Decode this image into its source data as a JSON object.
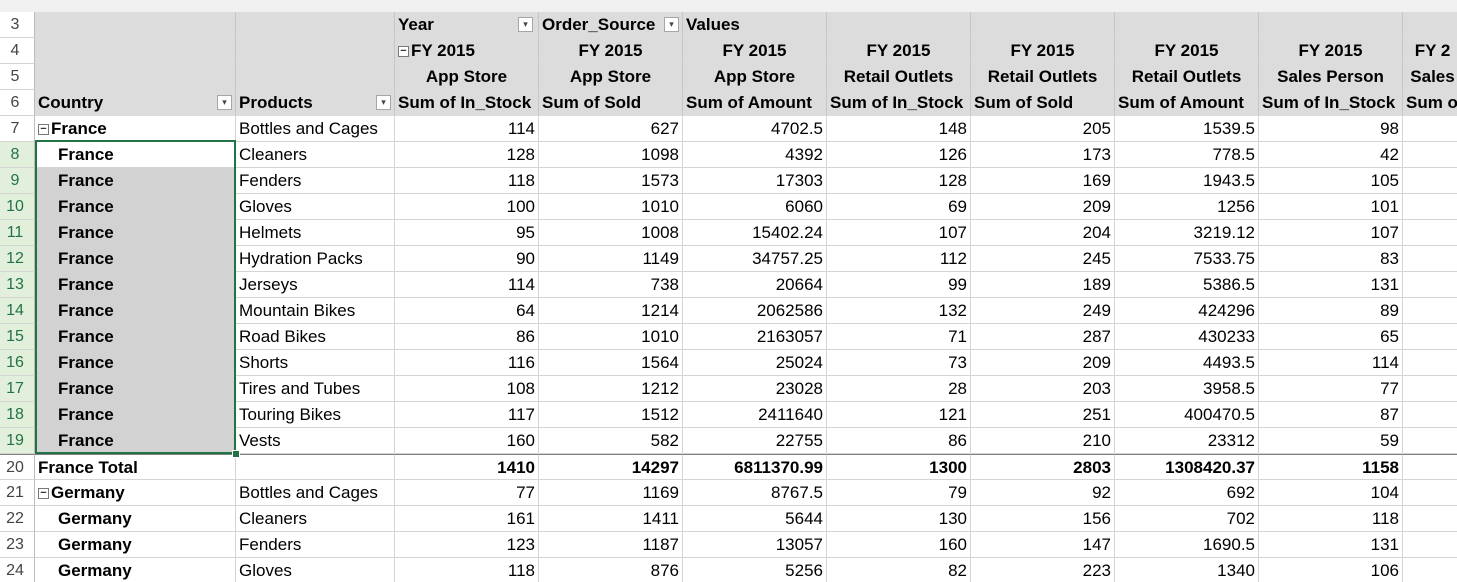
{
  "sheet": {
    "top_row_number": "2",
    "columns": [
      "Country",
      "Products",
      "c1",
      "c2",
      "c3",
      "c4",
      "c5",
      "c6",
      "c7",
      "c8"
    ],
    "header": {
      "r3": {
        "num": "3",
        "c1": "Year",
        "c2": "Order_Source",
        "c3": "Values"
      },
      "r4": {
        "num": "4",
        "c1": "FY 2015",
        "c2": "FY 2015",
        "c3": "FY 2015",
        "c4": "FY 2015",
        "c5": "FY 2015",
        "c6": "FY 2015",
        "c7": "FY 2015",
        "c8": "FY 2"
      },
      "r5": {
        "num": "5",
        "c1": "App Store",
        "c2": "App Store",
        "c3": "App Store",
        "c4": "Retail Outlets",
        "c5": "Retail Outlets",
        "c6": "Retail Outlets",
        "c7": "Sales Person",
        "c8": "Sales "
      },
      "r6": {
        "num": "6",
        "country": "Country",
        "products": "Products",
        "c1": "Sum of In_Stock",
        "c2": "Sum of Sold",
        "c3": "Sum of Amount",
        "c4": "Sum of In_Stock",
        "c5": "Sum of Sold",
        "c6": "Sum of Amount",
        "c7": "Sum of In_Stock",
        "c8": "Sum o"
      }
    },
    "rows": [
      {
        "num": "7",
        "country": "France",
        "product": "Bottles and Cages",
        "v": [
          "114",
          "627",
          "4702.5",
          "148",
          "205",
          "1539.5",
          "98"
        ]
      },
      {
        "num": "8",
        "country": "France",
        "product": "Cleaners",
        "v": [
          "128",
          "1098",
          "4392",
          "126",
          "173",
          "778.5",
          "42"
        ]
      },
      {
        "num": "9",
        "country": "France",
        "product": "Fenders",
        "v": [
          "118",
          "1573",
          "17303",
          "128",
          "169",
          "1943.5",
          "105"
        ]
      },
      {
        "num": "10",
        "country": "France",
        "product": "Gloves",
        "v": [
          "100",
          "1010",
          "6060",
          "69",
          "209",
          "1256",
          "101"
        ]
      },
      {
        "num": "11",
        "country": "France",
        "product": "Helmets",
        "v": [
          "95",
          "1008",
          "15402.24",
          "107",
          "204",
          "3219.12",
          "107"
        ]
      },
      {
        "num": "12",
        "country": "France",
        "product": "Hydration Packs",
        "v": [
          "90",
          "1149",
          "34757.25",
          "112",
          "245",
          "7533.75",
          "83"
        ]
      },
      {
        "num": "13",
        "country": "France",
        "product": "Jerseys",
        "v": [
          "114",
          "738",
          "20664",
          "99",
          "189",
          "5386.5",
          "131"
        ]
      },
      {
        "num": "14",
        "country": "France",
        "product": "Mountain Bikes",
        "v": [
          "64",
          "1214",
          "2062586",
          "132",
          "249",
          "424296",
          "89"
        ]
      },
      {
        "num": "15",
        "country": "France",
        "product": "Road Bikes",
        "v": [
          "86",
          "1010",
          "2163057",
          "71",
          "287",
          "430233",
          "65"
        ]
      },
      {
        "num": "16",
        "country": "France",
        "product": "Shorts",
        "v": [
          "116",
          "1564",
          "25024",
          "73",
          "209",
          "4493.5",
          "114"
        ]
      },
      {
        "num": "17",
        "country": "France",
        "product": "Tires and Tubes",
        "v": [
          "108",
          "1212",
          "23028",
          "28",
          "203",
          "3958.5",
          "77"
        ]
      },
      {
        "num": "18",
        "country": "France",
        "product": "Touring Bikes",
        "v": [
          "117",
          "1512",
          "2411640",
          "121",
          "251",
          "400470.5",
          "87"
        ]
      },
      {
        "num": "19",
        "country": "France",
        "product": "Vests",
        "v": [
          "160",
          "582",
          "22755",
          "86",
          "210",
          "23312",
          "59"
        ]
      },
      {
        "num": "20",
        "country": "France Total",
        "product": "",
        "v": [
          "1410",
          "14297",
          "6811370.99",
          "1300",
          "2803",
          "1308420.37",
          "1158"
        ],
        "total": true
      },
      {
        "num": "21",
        "country": "Germany",
        "product": "Bottles and Cages",
        "v": [
          "77",
          "1169",
          "8767.5",
          "79",
          "92",
          "692",
          "104"
        ]
      },
      {
        "num": "22",
        "country": "Germany",
        "product": "Cleaners",
        "v": [
          "161",
          "1411",
          "5644",
          "130",
          "156",
          "702",
          "118"
        ]
      },
      {
        "num": "23",
        "country": "Germany",
        "product": "Fenders",
        "v": [
          "123",
          "1187",
          "13057",
          "160",
          "147",
          "1690.5",
          "131"
        ]
      },
      {
        "num": "24",
        "country": "Germany",
        "product": "Gloves",
        "v": [
          "118",
          "876",
          "5256",
          "82",
          "223",
          "1340",
          "106"
        ]
      }
    ]
  },
  "icons": {
    "dropdown": "dropdown-arrow-icon",
    "collapse": "collapse-minus-icon"
  },
  "colors": {
    "header_bg": "#dcdcdc",
    "selection": "#217346",
    "selected_fill": "#d2d2d2"
  }
}
